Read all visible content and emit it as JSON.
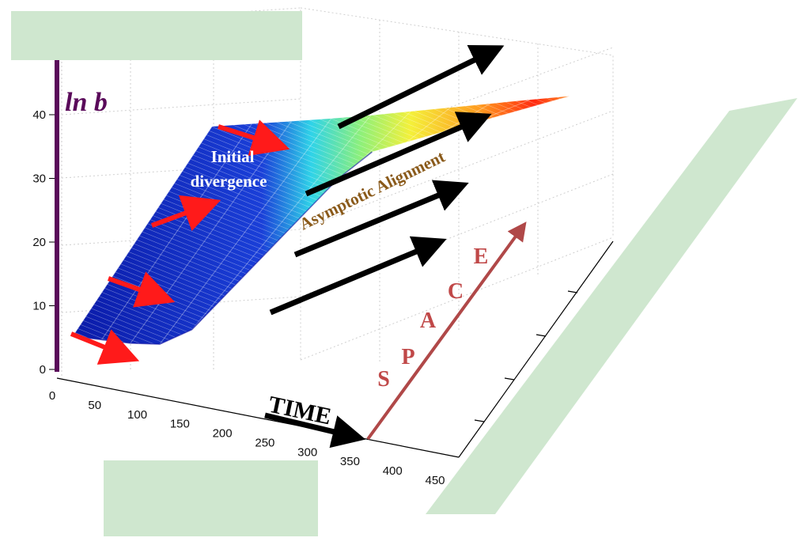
{
  "chart_data": {
    "type": "surface",
    "title": "",
    "z_axis": {
      "label": "ln b",
      "ticks": [
        0,
        10,
        20,
        30,
        40
      ],
      "range": [
        0,
        45
      ]
    },
    "x_axis": {
      "label": "TIME",
      "ticks": [
        0,
        50,
        100,
        150,
        200,
        250,
        300,
        350,
        400,
        450
      ],
      "range": [
        0,
        450
      ]
    },
    "space_axis": {
      "label_letters": [
        "S",
        "P",
        "A",
        "C",
        "E"
      ]
    },
    "grid": true,
    "surface_profile": [
      {
        "time": 0,
        "ln_b": 2
      },
      {
        "time": 50,
        "ln_b": 2
      },
      {
        "time": 100,
        "ln_b": 2
      },
      {
        "time": 150,
        "ln_b": 2.5
      },
      {
        "time": 200,
        "ln_b": 6
      },
      {
        "time": 250,
        "ln_b": 14
      },
      {
        "time": 300,
        "ln_b": 22
      },
      {
        "time": 350,
        "ln_b": 30
      },
      {
        "time": 400,
        "ln_b": 38
      },
      {
        "time": 450,
        "ln_b": 44
      }
    ],
    "colorscale": [
      "#0a1aa8",
      "#1e6bff",
      "#2fd3e8",
      "#7ef07a",
      "#f4f03a",
      "#ff9a1f",
      "#ff2a10"
    ]
  },
  "annotations": {
    "initial_divergence": [
      "Initial",
      "divergence"
    ],
    "asymptotic_alignment": "Asymptotic Alignment"
  },
  "colors": {
    "lnb_axis": "#5a0a5a",
    "space_axis": "#b04848",
    "red_arrow": "#ff1a1a",
    "black_arrow": "#000000",
    "mask": "#cfe7cf",
    "divergence_text": "#ffffff",
    "alignment_text": "#8a5a1a"
  }
}
